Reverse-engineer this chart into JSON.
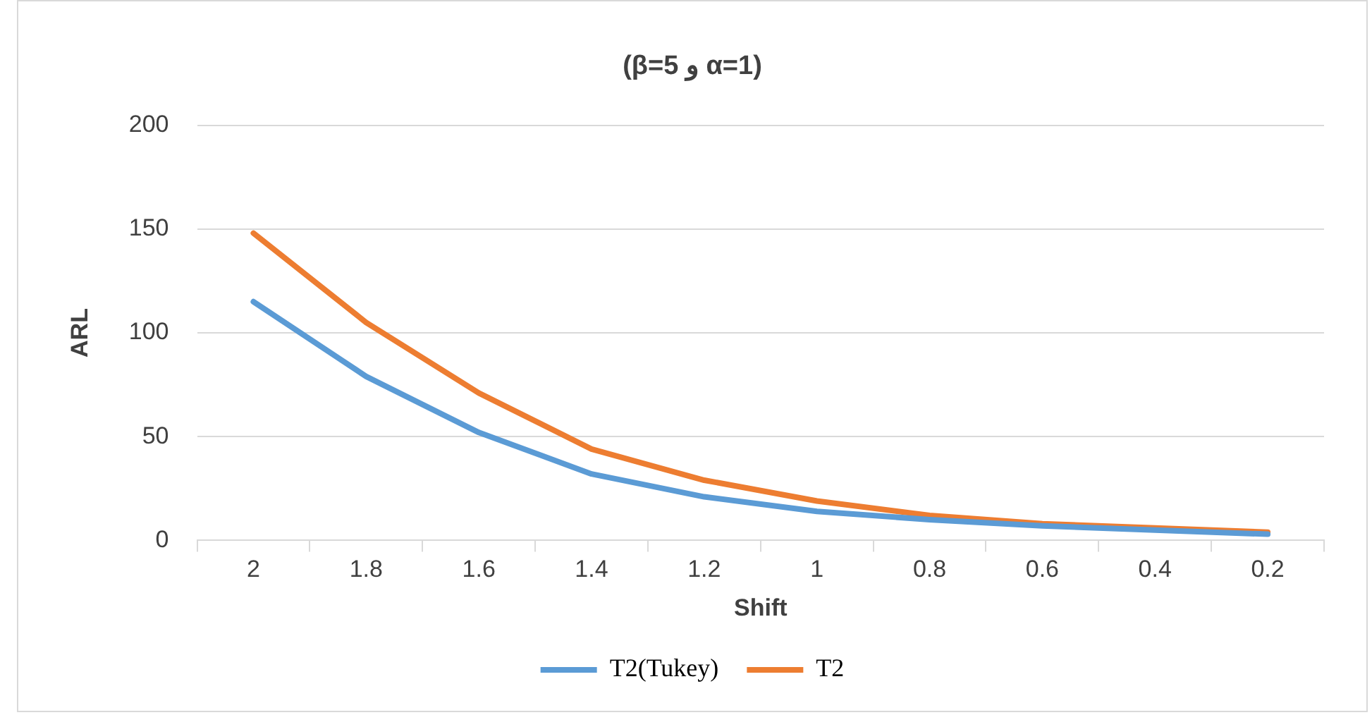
{
  "chart_data": {
    "type": "line",
    "title": "(β=5 و α=1)",
    "xlabel": "Shift",
    "ylabel": "ARL",
    "categories": [
      "2",
      "1.8",
      "1.6",
      "1.4",
      "1.2",
      "1",
      "0.8",
      "0.6",
      "0.4",
      "0.2"
    ],
    "series": [
      {
        "name": "T2(Tukey)",
        "color": "#5b9bd5",
        "values": [
          115,
          79,
          52,
          32,
          21,
          14,
          10,
          7,
          5,
          3
        ]
      },
      {
        "name": "T2",
        "color": "#ed7d31",
        "values": [
          148,
          105,
          71,
          44,
          29,
          19,
          12,
          8,
          6,
          4
        ]
      }
    ],
    "ylim": [
      0,
      200
    ],
    "yticks": [
      0,
      50,
      100,
      150,
      200
    ],
    "grid": "y",
    "legend": "bottom",
    "marker": "none",
    "line_style": "solid"
  }
}
